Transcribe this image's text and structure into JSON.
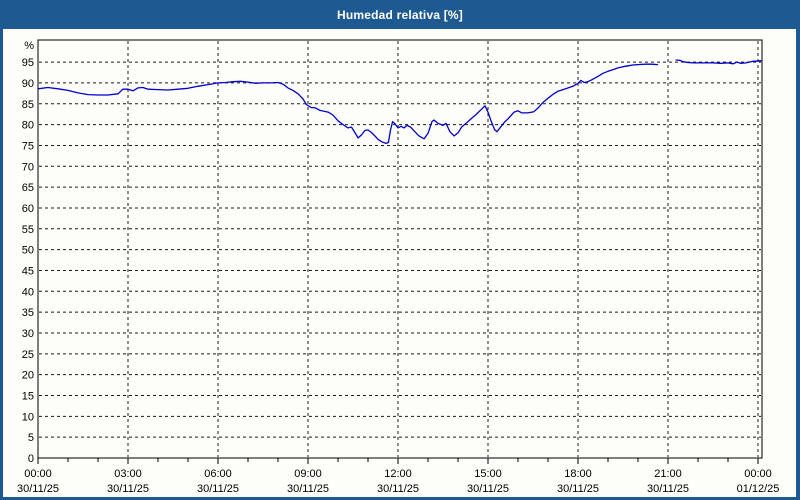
{
  "window": {
    "title": "Humedad relativa [%]"
  },
  "colors": {
    "titlebar": "#1e5a91",
    "frame": "#1e5a91",
    "plot_background": "#fdfdfa",
    "plot_border": "#000000",
    "grid": "#1a1a1a",
    "line": "#0000cc",
    "label_text": "#000000",
    "title_text": "#ffffff"
  },
  "chart_data": {
    "type": "line",
    "title": "Humedad relativa [%]",
    "y_unit_label": "%",
    "ylabel": "",
    "xlabel": "",
    "ylim": [
      0,
      100.3
    ],
    "xlim_hours": [
      0,
      24.13
    ],
    "y_ticks": [
      0,
      5,
      10,
      15,
      20,
      25,
      30,
      35,
      40,
      45,
      50,
      55,
      60,
      65,
      70,
      75,
      80,
      85,
      90,
      95
    ],
    "x_ticks": [
      {
        "hour": 0,
        "time": "00:00",
        "date": "30/11/25"
      },
      {
        "hour": 3,
        "time": "03:00",
        "date": "30/11/25"
      },
      {
        "hour": 6,
        "time": "06:00",
        "date": "30/11/25"
      },
      {
        "hour": 9,
        "time": "09:00",
        "date": "30/11/25"
      },
      {
        "hour": 12,
        "time": "12:00",
        "date": "30/11/25"
      },
      {
        "hour": 15,
        "time": "15:00",
        "date": "30/11/25"
      },
      {
        "hour": 18,
        "time": "18:00",
        "date": "30/11/25"
      },
      {
        "hour": 21,
        "time": "21:00",
        "date": "30/11/25"
      },
      {
        "hour": 24,
        "time": "00:00",
        "date": "01/12/25"
      }
    ],
    "x_minor_tick_every_hours": 1,
    "grid": "dashed",
    "legend": "none",
    "series": [
      {
        "name": "Humedad relativa",
        "color": "#0000cc",
        "segments": [
          [
            [
              0,
              88.6
            ],
            [
              0.33,
              88.9
            ],
            [
              0.67,
              88.6
            ],
            [
              1,
              88.2
            ],
            [
              1.33,
              87.6
            ],
            [
              1.67,
              87.2
            ],
            [
              2,
              87.1
            ],
            [
              2.33,
              87.1
            ],
            [
              2.67,
              87.4
            ],
            [
              2.83,
              88.5
            ],
            [
              3,
              88.5
            ],
            [
              3.17,
              88.1
            ],
            [
              3.33,
              88.8
            ],
            [
              3.5,
              88.9
            ],
            [
              3.67,
              88.5
            ],
            [
              4,
              88.4
            ],
            [
              4.33,
              88.3
            ],
            [
              4.67,
              88.5
            ],
            [
              5,
              88.7
            ],
            [
              5.33,
              89.2
            ],
            [
              5.67,
              89.6
            ],
            [
              6,
              90
            ],
            [
              6.25,
              90.1
            ],
            [
              6.5,
              90.3
            ],
            [
              6.75,
              90.4
            ],
            [
              7,
              90.2
            ],
            [
              7.25,
              89.9
            ],
            [
              7.5,
              90
            ],
            [
              7.75,
              90
            ],
            [
              8,
              90.1
            ],
            [
              8.17,
              89.7
            ],
            [
              8.33,
              88.8
            ],
            [
              8.5,
              88.2
            ],
            [
              8.67,
              87.4
            ],
            [
              8.83,
              86.2
            ],
            [
              8.95,
              84.8
            ],
            [
              9.1,
              84.1
            ],
            [
              9.25,
              84
            ],
            [
              9.4,
              83.4
            ],
            [
              9.67,
              83
            ],
            [
              9.83,
              82.3
            ],
            [
              10,
              80.9
            ],
            [
              10.17,
              80
            ],
            [
              10.33,
              79.2
            ],
            [
              10.45,
              79.4
            ],
            [
              10.57,
              78
            ],
            [
              10.67,
              76.8
            ],
            [
              10.78,
              77.5
            ],
            [
              10.9,
              78.6
            ],
            [
              11,
              78.7
            ],
            [
              11.1,
              78.2
            ],
            [
              11.23,
              77.3
            ],
            [
              11.33,
              76.5
            ],
            [
              11.45,
              75.9
            ],
            [
              11.6,
              75.5
            ],
            [
              11.68,
              75.7
            ],
            [
              11.75,
              78.7
            ],
            [
              11.82,
              80.7
            ],
            [
              11.9,
              80.2
            ],
            [
              12,
              79.2
            ],
            [
              12.1,
              79.6
            ],
            [
              12.2,
              79.2
            ],
            [
              12.3,
              79.8
            ],
            [
              12.42,
              79.4
            ],
            [
              12.55,
              78.4
            ],
            [
              12.7,
              77.3
            ],
            [
              12.87,
              76.6
            ],
            [
              13,
              77.9
            ],
            [
              13.13,
              80.7
            ],
            [
              13.2,
              81.1
            ],
            [
              13.33,
              80.3
            ],
            [
              13.5,
              79.8
            ],
            [
              13.6,
              80.3
            ],
            [
              13.73,
              78.3
            ],
            [
              13.87,
              77.3
            ],
            [
              14,
              78
            ],
            [
              14.13,
              79.5
            ],
            [
              14.27,
              80.3
            ],
            [
              14.47,
              81.6
            ],
            [
              14.6,
              82.4
            ],
            [
              14.73,
              83.3
            ],
            [
              14.9,
              84.5
            ],
            [
              15,
              83
            ],
            [
              15.1,
              80.9
            ],
            [
              15.22,
              78.8
            ],
            [
              15.3,
              78.3
            ],
            [
              15.42,
              79.4
            ],
            [
              15.55,
              80.6
            ],
            [
              15.67,
              81.4
            ],
            [
              15.87,
              83
            ],
            [
              16,
              83.3
            ],
            [
              16.13,
              82.8
            ],
            [
              16.33,
              82.8
            ],
            [
              16.53,
              83.1
            ],
            [
              16.67,
              84
            ],
            [
              16.83,
              85.3
            ],
            [
              17,
              86.3
            ],
            [
              17.17,
              87.3
            ],
            [
              17.33,
              88
            ],
            [
              17.5,
              88.4
            ],
            [
              17.67,
              88.8
            ],
            [
              17.83,
              89.2
            ],
            [
              18,
              89.9
            ],
            [
              18.1,
              90.6
            ],
            [
              18.2,
              90.1
            ],
            [
              18.33,
              90.3
            ],
            [
              18.5,
              90.9
            ],
            [
              18.67,
              91.6
            ],
            [
              18.83,
              92.3
            ],
            [
              19,
              92.8
            ],
            [
              19.17,
              93.2
            ],
            [
              19.33,
              93.6
            ],
            [
              19.5,
              93.9
            ],
            [
              19.67,
              94.1
            ],
            [
              19.83,
              94.3
            ],
            [
              20,
              94.4
            ],
            [
              20.25,
              94.5
            ],
            [
              20.45,
              94.5
            ],
            [
              20.65,
              94.4
            ]
          ],
          [
            [
              21.27,
              95.5
            ],
            [
              21.4,
              95.4
            ],
            [
              21.5,
              95.1
            ],
            [
              21.65,
              94.9
            ],
            [
              21.83,
              94.8
            ],
            [
              22,
              94.8
            ],
            [
              22.25,
              94.8
            ],
            [
              22.5,
              94.8
            ],
            [
              22.75,
              94.7
            ],
            [
              23,
              94.8
            ],
            [
              23.17,
              94.6
            ],
            [
              23.3,
              95
            ],
            [
              23.42,
              94.7
            ],
            [
              23.6,
              94.8
            ],
            [
              23.83,
              95.2
            ],
            [
              24.1,
              95.3
            ]
          ]
        ]
      }
    ]
  }
}
